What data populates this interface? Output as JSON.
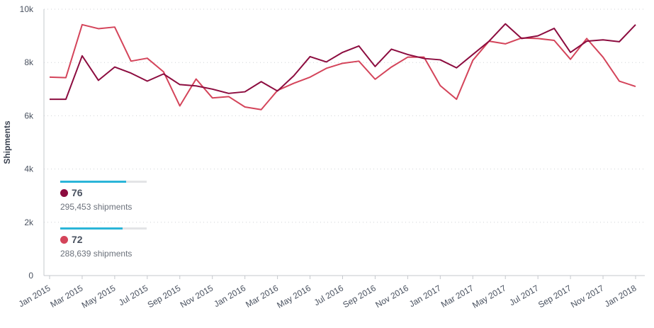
{
  "chart_data": {
    "type": "line",
    "title": "",
    "xlabel": "",
    "ylabel": "Shipments",
    "ylim": [
      0,
      10000
    ],
    "yticks": [
      {
        "v": 0,
        "label": "0"
      },
      {
        "v": 2000,
        "label": "2k"
      },
      {
        "v": 4000,
        "label": "4k"
      },
      {
        "v": 6000,
        "label": "6k"
      },
      {
        "v": 8000,
        "label": "8k"
      },
      {
        "v": 10000,
        "label": "10k"
      }
    ],
    "xtick_labels": [
      "Jan 2015",
      "Mar 2015",
      "May 2015",
      "Jul 2015",
      "Sep 2015",
      "Nov 2015",
      "Jan 2016",
      "Mar 2016",
      "May 2016",
      "Jul 2016",
      "Sep 2016",
      "Nov 2016",
      "Jan 2017",
      "Mar 2017",
      "May 2017",
      "Jul 2017",
      "Sep 2017",
      "Nov 2017",
      "Jan 2018"
    ],
    "grid": true,
    "series": [
      {
        "name": "76",
        "color": "#8c0c3f",
        "values": [
          6620,
          6620,
          8250,
          7330,
          7830,
          7600,
          7300,
          7570,
          7170,
          7120,
          7000,
          6840,
          6900,
          7280,
          6930,
          7500,
          8220,
          8020,
          8380,
          8620,
          7850,
          8500,
          8300,
          8150,
          8100,
          7800,
          8300,
          8800,
          9450,
          8900,
          9000,
          9280,
          8380,
          8800,
          8850,
          8780,
          9420
        ]
      },
      {
        "name": "72",
        "color": "#d4445a",
        "values": [
          7450,
          7430,
          9420,
          9270,
          9330,
          8050,
          8160,
          7650,
          6370,
          7380,
          6670,
          6720,
          6330,
          6230,
          6950,
          7220,
          7450,
          7780,
          7970,
          8050,
          7370,
          7830,
          8200,
          8200,
          7130,
          6620,
          8080,
          8800,
          8700,
          8920,
          8900,
          8830,
          8120,
          8900,
          8200,
          7300,
          7100
        ]
      }
    ],
    "legend": [
      {
        "value": "76",
        "sub": "295,453 shipments",
        "fill_pct": 76,
        "color": "#8c0c3f"
      },
      {
        "value": "72",
        "sub": "288,639 shipments",
        "fill_pct": 72,
        "color": "#d4445a"
      }
    ]
  }
}
